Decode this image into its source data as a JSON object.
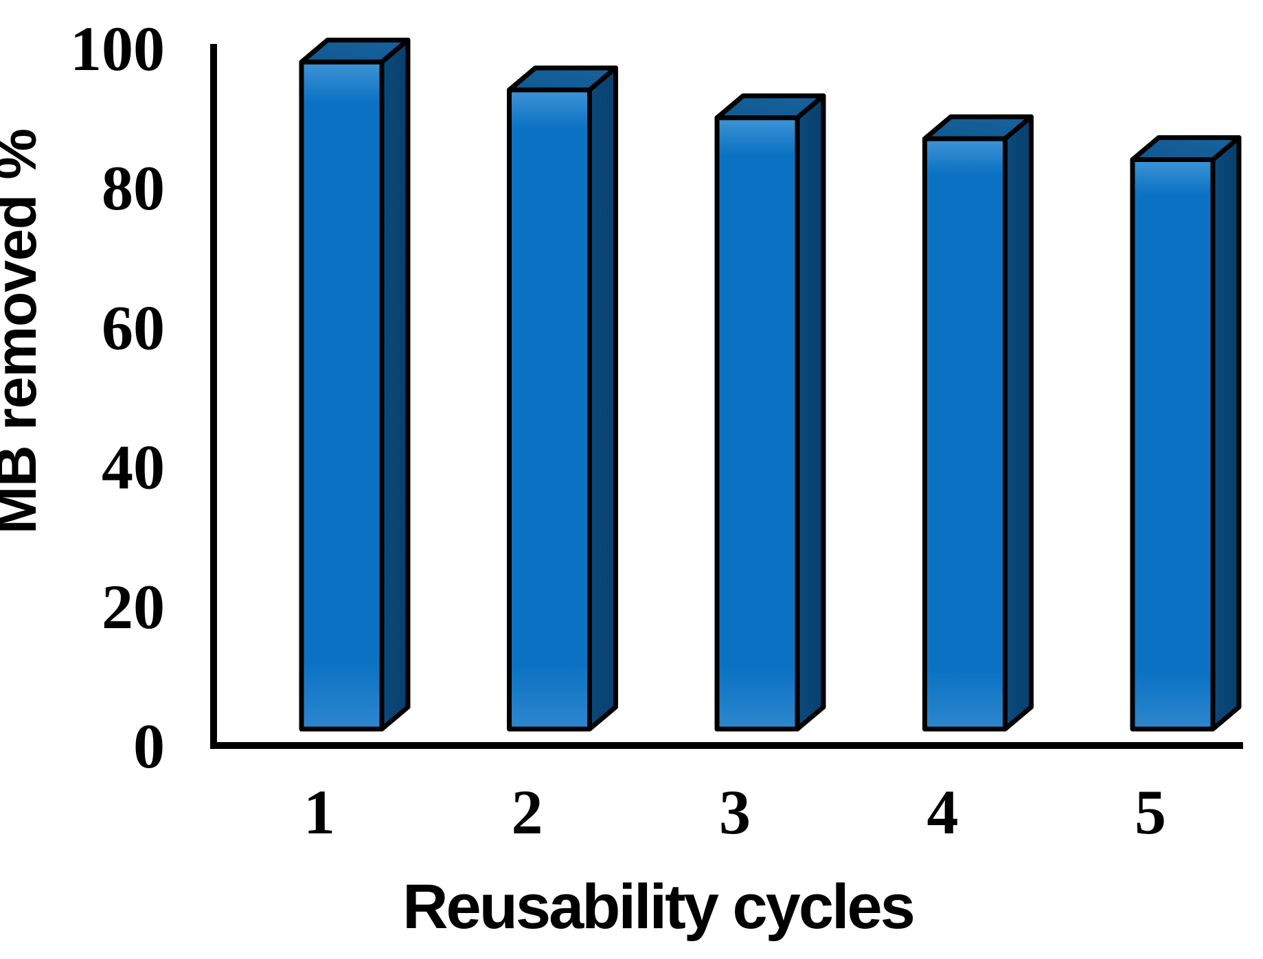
{
  "page": {
    "background": "#ffffff"
  },
  "chart_data": {
    "type": "bar",
    "style": "3d-column",
    "title": "",
    "xlabel": "Reusability cycles",
    "ylabel": "MB removed %",
    "categories": [
      "1",
      "2",
      "3",
      "4",
      "5"
    ],
    "values": [
      98,
      94,
      90,
      87,
      84
    ],
    "series": [
      {
        "name": "MB removed %",
        "values": [
          98,
          94,
          90,
          87,
          84
        ]
      }
    ],
    "yticks": [
      0,
      20,
      40,
      60,
      80,
      100
    ],
    "ylim": [
      0,
      100
    ],
    "grid": false,
    "legend": false,
    "colors": {
      "bar_front": "#0b72c3",
      "bar_front_highlight": "#4094d6",
      "bar_front_bottom": "#2e87ce",
      "bar_side": "#0a4a7d",
      "bar_side_dark": "#093f6b",
      "bar_top": "#11588f",
      "bar_top_light": "#17639f",
      "outline": "#000000",
      "axis": "#000000",
      "text": "#000000"
    }
  }
}
